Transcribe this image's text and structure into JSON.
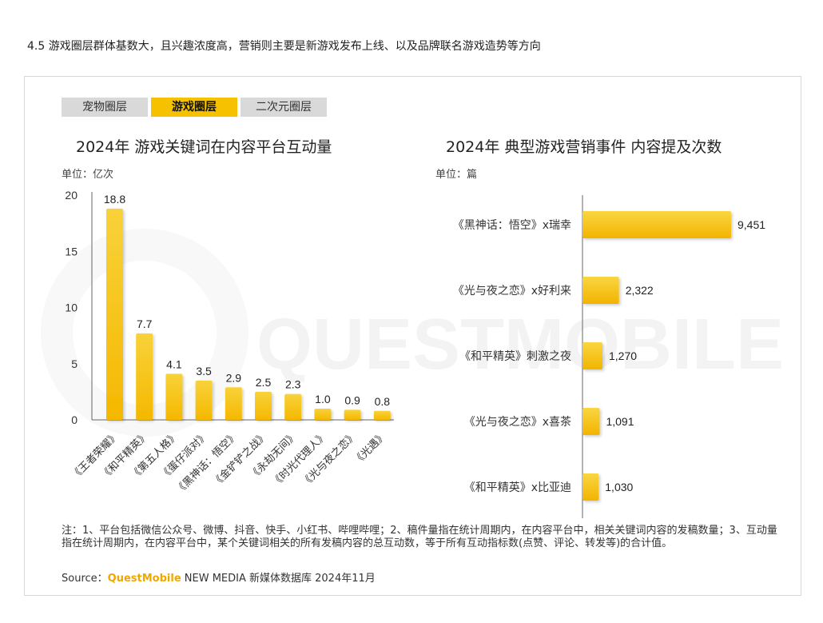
{
  "heading": "4.5 游戏圈层群体基数大，且兴趣浓度高，营销则主要是新游戏发布上线、以及品牌联名游戏造势等方向",
  "tabs": [
    {
      "label": "宠物圈层",
      "active": false
    },
    {
      "label": "游戏圈层",
      "active": true
    },
    {
      "label": "二次元圈层",
      "active": false
    }
  ],
  "watermark": "QUESTMOBILE",
  "colors": {
    "bar_top": "#f8d23a",
    "bar_bottom": "#f5b800",
    "tab_active": "#f6c200",
    "brand": "#f0a800"
  },
  "chart_data": [
    {
      "type": "bar",
      "title": "2024年 游戏关键词在内容平台互动量",
      "unit": "单位：亿次",
      "ylim": [
        0,
        20
      ],
      "yticks": [
        "20",
        "15",
        "10",
        "5",
        "0"
      ],
      "categories": [
        "《王者荣耀》",
        "《和平精英》",
        "《第五人格》",
        "《蛋仔派对》",
        "《黑神话：悟空》",
        "《金铲铲之战》",
        "《永劫无间》",
        "《时光代理人》",
        "《光与夜之恋》",
        "《光遇》"
      ],
      "values": [
        18.8,
        7.7,
        4.1,
        3.5,
        2.9,
        2.5,
        2.3,
        1.0,
        0.9,
        0.8
      ],
      "value_labels": [
        "18.8",
        "7.7",
        "4.1",
        "3.5",
        "2.9",
        "2.5",
        "2.3",
        "1.0",
        "0.9",
        "0.8"
      ]
    },
    {
      "type": "bar",
      "orientation": "horizontal",
      "title": "2024年 典型游戏营销事件 内容提及次数",
      "unit": "单位：篇",
      "xlim": [
        0,
        9451
      ],
      "categories": [
        "《黑神话：悟空》x瑞幸",
        "《光与夜之恋》x好利来",
        "《和平精英》刺激之夜",
        "《光与夜之恋》x喜茶",
        "《和平精英》x比亚迪"
      ],
      "values": [
        9451,
        2322,
        1270,
        1091,
        1030
      ],
      "value_labels": [
        "9,451",
        "2,322",
        "1,270",
        "1,091",
        "1,030"
      ]
    }
  ],
  "note": "注：1、平台包括微信公众号、微博、抖音、快手、小红书、哔哩哔哩；2、稿件量指在统计周期内，在内容平台中，相关关键词内容的发稿数量；3、互动量指在统计周期内，在内容平台中，某个关键词相关的所有发稿内容的总互动数，等于所有互动指标数(点赞、评论、转发等)的合计值。",
  "source": {
    "prefix": "Source：",
    "brand": "QuestMobile",
    "suffix": " NEW MEDIA 新媒体数据库 2024年11月"
  }
}
